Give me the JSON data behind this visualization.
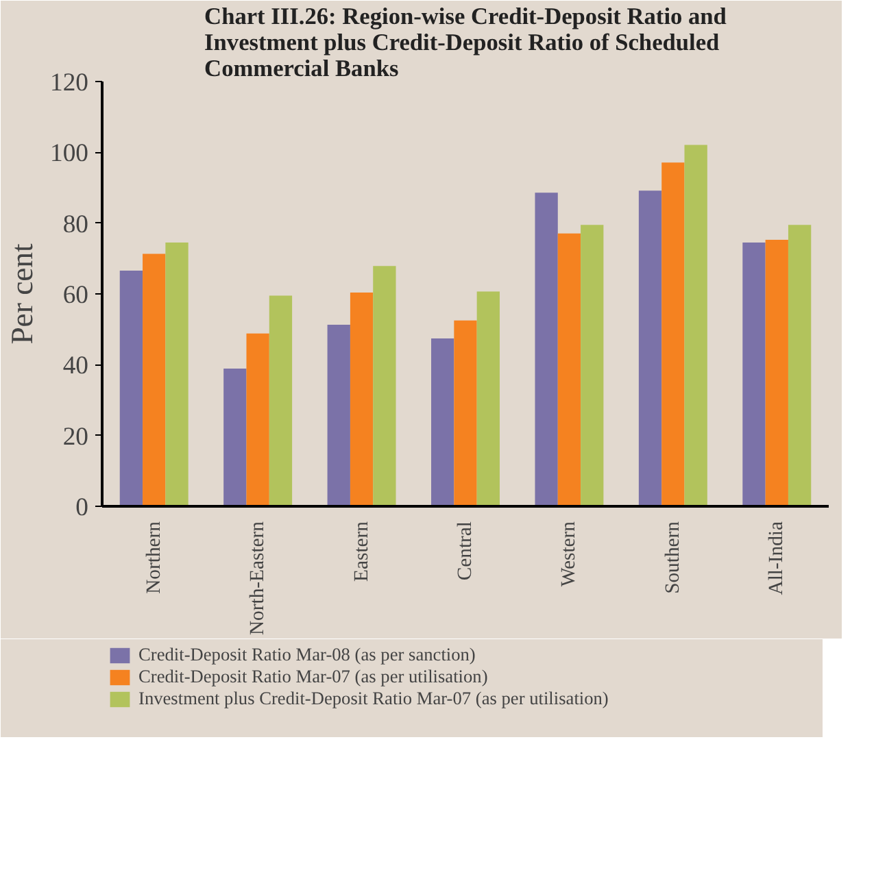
{
  "chart_data": {
    "type": "bar",
    "title": "Chart III.26: Region-wise Credit-Deposit Ratio and Investment plus Credit-Deposit Ratio of Scheduled Commercial Banks",
    "ylabel": "Per cent",
    "categories": [
      "Northern",
      "North-Eastern",
      "Eastern",
      "Central",
      "Western",
      "Southern",
      "All-India"
    ],
    "series": [
      {
        "name": "Credit-Deposit Ratio Mar-08 (as per sanction)",
        "color": "#7b72a8",
        "values": [
          66.6,
          38.9,
          51.3,
          47.4,
          88.6,
          89.2,
          74.5
        ]
      },
      {
        "name": "Credit-Deposit Ratio Mar-07 (as per utilisation)",
        "color": "#f58220",
        "values": [
          71.3,
          48.8,
          60.4,
          52.5,
          77.1,
          97.1,
          75.3
        ]
      },
      {
        "name": "Investment plus Credit-Deposit Ratio Mar-07 (as per utilisation)",
        "color": "#b2c35c",
        "values": [
          74.5,
          59.5,
          67.9,
          60.7,
          79.5,
          102.1,
          79.5
        ]
      }
    ],
    "ylim": [
      0,
      120
    ],
    "yticks": [
      0,
      20,
      40,
      60,
      80,
      100,
      120
    ],
    "grid": false,
    "legend": "bottom"
  }
}
